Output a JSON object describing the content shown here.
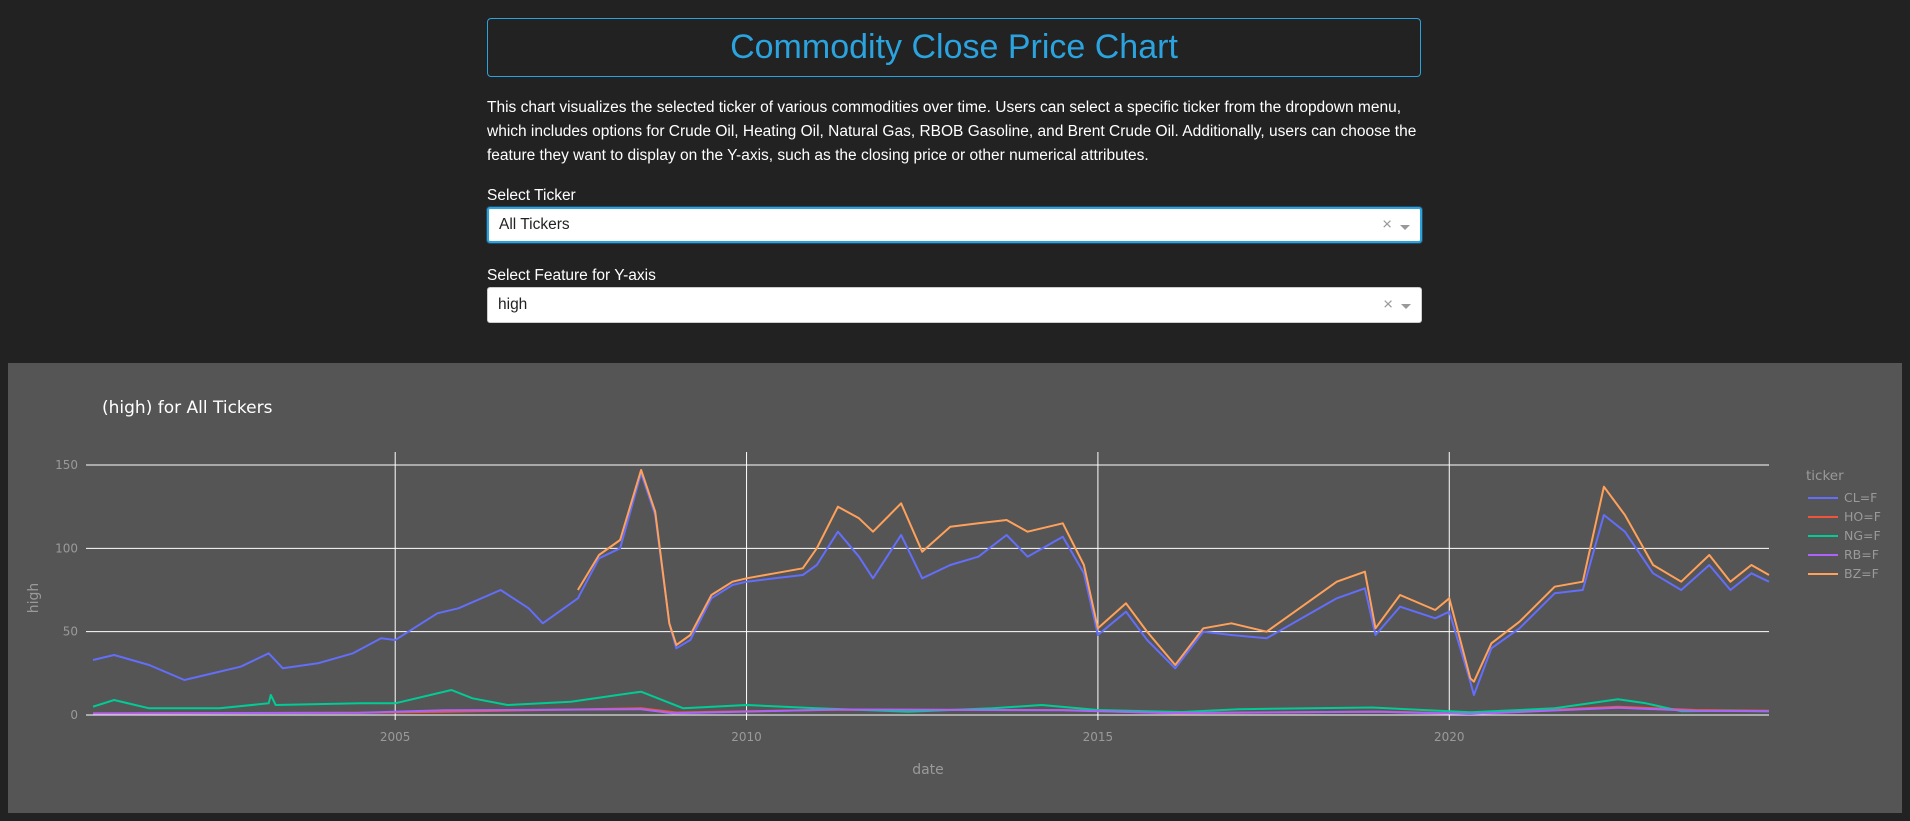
{
  "header": {
    "title": "Commodity Close Price Chart"
  },
  "description": "This chart visualizes the selected ticker of various commodities over time. Users can select a specific ticker from the dropdown menu, which includes options for Crude Oil, Heating Oil, Natural Gas, RBOB Gasoline, and Brent Crude Oil. Additionally, users can choose the feature they want to display on the Y-axis, such as the closing price or other numerical attributes.",
  "ticker_select": {
    "label": "Select Ticker",
    "value": "All Tickers",
    "clear_icon": "×"
  },
  "feature_select": {
    "label": "Select Feature for Y-axis",
    "value": "high",
    "clear_icon": "×"
  },
  "chart_data": {
    "type": "line",
    "title": "(high) for All Tickers",
    "xlabel": "date",
    "ylabel": "high",
    "xlim": [
      2000.6,
      2024.55
    ],
    "ylim": [
      -3,
      153
    ],
    "xticks": [
      2005,
      2010,
      2015,
      2020
    ],
    "xtick_labels": [
      "2005",
      "2010",
      "2015",
      "2020"
    ],
    "yticks": [
      0,
      50,
      100,
      150
    ],
    "ytick_labels": [
      "0",
      "50",
      "100",
      "150"
    ],
    "grid": true,
    "legend_title": "ticker",
    "legend_position": "right",
    "series": [
      {
        "name": "CL=F",
        "color": "#636efa",
        "points": [
          [
            2000.7,
            33
          ],
          [
            2001.0,
            36
          ],
          [
            2001.5,
            30
          ],
          [
            2002.0,
            21
          ],
          [
            2002.3,
            24
          ],
          [
            2002.8,
            29
          ],
          [
            2003.2,
            37
          ],
          [
            2003.4,
            28
          ],
          [
            2003.9,
            31
          ],
          [
            2004.4,
            37
          ],
          [
            2004.8,
            46
          ],
          [
            2005.0,
            45
          ],
          [
            2005.6,
            61
          ],
          [
            2005.9,
            64
          ],
          [
            2006.5,
            75
          ],
          [
            2006.9,
            64
          ],
          [
            2007.1,
            55
          ],
          [
            2007.6,
            70
          ],
          [
            2007.9,
            94
          ],
          [
            2008.2,
            100
          ],
          [
            2008.5,
            145
          ],
          [
            2008.7,
            120
          ],
          [
            2008.9,
            55
          ],
          [
            2009.0,
            40
          ],
          [
            2009.2,
            45
          ],
          [
            2009.5,
            70
          ],
          [
            2009.8,
            78
          ],
          [
            2010.0,
            80
          ],
          [
            2010.4,
            82
          ],
          [
            2010.8,
            84
          ],
          [
            2011.0,
            90
          ],
          [
            2011.3,
            110
          ],
          [
            2011.6,
            95
          ],
          [
            2011.8,
            82
          ],
          [
            2012.2,
            108
          ],
          [
            2012.5,
            82
          ],
          [
            2012.9,
            90
          ],
          [
            2013.3,
            95
          ],
          [
            2013.7,
            108
          ],
          [
            2014.0,
            95
          ],
          [
            2014.5,
            107
          ],
          [
            2014.8,
            85
          ],
          [
            2015.0,
            48
          ],
          [
            2015.4,
            62
          ],
          [
            2015.7,
            45
          ],
          [
            2016.1,
            28
          ],
          [
            2016.5,
            50
          ],
          [
            2016.9,
            48
          ],
          [
            2017.4,
            46
          ],
          [
            2017.9,
            58
          ],
          [
            2018.4,
            70
          ],
          [
            2018.8,
            76
          ],
          [
            2018.95,
            48
          ],
          [
            2019.3,
            65
          ],
          [
            2019.8,
            58
          ],
          [
            2020.0,
            62
          ],
          [
            2020.3,
            20
          ],
          [
            2020.35,
            12
          ],
          [
            2020.6,
            40
          ],
          [
            2021.0,
            52
          ],
          [
            2021.5,
            73
          ],
          [
            2021.9,
            75
          ],
          [
            2022.2,
            120
          ],
          [
            2022.5,
            110
          ],
          [
            2022.9,
            85
          ],
          [
            2023.3,
            75
          ],
          [
            2023.7,
            90
          ],
          [
            2024.0,
            75
          ],
          [
            2024.3,
            85
          ],
          [
            2024.55,
            80
          ]
        ]
      },
      {
        "name": "HO=F",
        "color": "#ef553b",
        "points": [
          [
            2000.7,
            1.0
          ],
          [
            2004.5,
            1.3
          ],
          [
            2005.7,
            2.0
          ],
          [
            2008.5,
            4.0
          ],
          [
            2009.0,
            1.5
          ],
          [
            2011.3,
            3.2
          ],
          [
            2014.5,
            3.0
          ],
          [
            2016.1,
            1.0
          ],
          [
            2019.0,
            2.1
          ],
          [
            2020.3,
            0.8
          ],
          [
            2022.4,
            5.0
          ],
          [
            2023.5,
            3.0
          ],
          [
            2024.55,
            2.6
          ]
        ]
      },
      {
        "name": "NG=F",
        "color": "#00cc96",
        "points": [
          [
            2000.7,
            5
          ],
          [
            2001.0,
            9
          ],
          [
            2001.5,
            4
          ],
          [
            2002.5,
            4
          ],
          [
            2003.2,
            7
          ],
          [
            2003.23,
            12
          ],
          [
            2003.3,
            6
          ],
          [
            2004.5,
            7
          ],
          [
            2005.0,
            7
          ],
          [
            2005.8,
            15
          ],
          [
            2006.1,
            10
          ],
          [
            2006.6,
            6
          ],
          [
            2007.5,
            8
          ],
          [
            2008.5,
            14
          ],
          [
            2009.1,
            4
          ],
          [
            2010.0,
            6
          ],
          [
            2011.0,
            4
          ],
          [
            2012.3,
            2
          ],
          [
            2013.5,
            4
          ],
          [
            2014.2,
            6
          ],
          [
            2015.0,
            3
          ],
          [
            2016.2,
            1.8
          ],
          [
            2017.0,
            3.5
          ],
          [
            2018.9,
            4.5
          ],
          [
            2020.3,
            1.6
          ],
          [
            2021.5,
            4
          ],
          [
            2022.4,
            9.5
          ],
          [
            2022.8,
            7
          ],
          [
            2023.3,
            2.3
          ],
          [
            2024.0,
            2.5
          ],
          [
            2024.55,
            2.3
          ]
        ]
      },
      {
        "name": "RB=F",
        "color": "#ab63fa",
        "points": [
          [
            2000.7,
            0.9
          ],
          [
            2004.5,
            1.4
          ],
          [
            2005.7,
            2.8
          ],
          [
            2008.5,
            3.5
          ],
          [
            2008.95,
            1.0
          ],
          [
            2011.3,
            3.3
          ],
          [
            2014.5,
            2.8
          ],
          [
            2016.0,
            1.2
          ],
          [
            2019.0,
            1.9
          ],
          [
            2020.3,
            0.6
          ],
          [
            2022.4,
            4.3
          ],
          [
            2023.5,
            2.6
          ],
          [
            2024.55,
            2.3
          ]
        ]
      },
      {
        "name": "BZ=F",
        "color": "#ffa15a",
        "points": [
          [
            2007.6,
            75
          ],
          [
            2007.9,
            96
          ],
          [
            2008.2,
            105
          ],
          [
            2008.5,
            147
          ],
          [
            2008.7,
            122
          ],
          [
            2008.9,
            55
          ],
          [
            2009.0,
            42
          ],
          [
            2009.2,
            48
          ],
          [
            2009.5,
            72
          ],
          [
            2009.8,
            80
          ],
          [
            2010.0,
            82
          ],
          [
            2010.4,
            85
          ],
          [
            2010.8,
            88
          ],
          [
            2011.0,
            100
          ],
          [
            2011.3,
            125
          ],
          [
            2011.6,
            118
          ],
          [
            2011.8,
            110
          ],
          [
            2012.2,
            127
          ],
          [
            2012.5,
            98
          ],
          [
            2012.9,
            113
          ],
          [
            2013.3,
            115
          ],
          [
            2013.7,
            117
          ],
          [
            2014.0,
            110
          ],
          [
            2014.5,
            115
          ],
          [
            2014.8,
            90
          ],
          [
            2015.0,
            52
          ],
          [
            2015.4,
            67
          ],
          [
            2015.7,
            50
          ],
          [
            2016.1,
            30
          ],
          [
            2016.5,
            52
          ],
          [
            2016.9,
            55
          ],
          [
            2017.4,
            50
          ],
          [
            2017.9,
            65
          ],
          [
            2018.4,
            80
          ],
          [
            2018.8,
            86
          ],
          [
            2018.95,
            52
          ],
          [
            2019.3,
            72
          ],
          [
            2019.8,
            63
          ],
          [
            2020.0,
            70
          ],
          [
            2020.3,
            22
          ],
          [
            2020.35,
            20
          ],
          [
            2020.6,
            43
          ],
          [
            2021.0,
            56
          ],
          [
            2021.5,
            77
          ],
          [
            2021.9,
            80
          ],
          [
            2022.2,
            137
          ],
          [
            2022.5,
            120
          ],
          [
            2022.9,
            90
          ],
          [
            2023.3,
            80
          ],
          [
            2023.7,
            96
          ],
          [
            2024.0,
            80
          ],
          [
            2024.3,
            90
          ],
          [
            2024.55,
            84
          ]
        ]
      }
    ]
  }
}
